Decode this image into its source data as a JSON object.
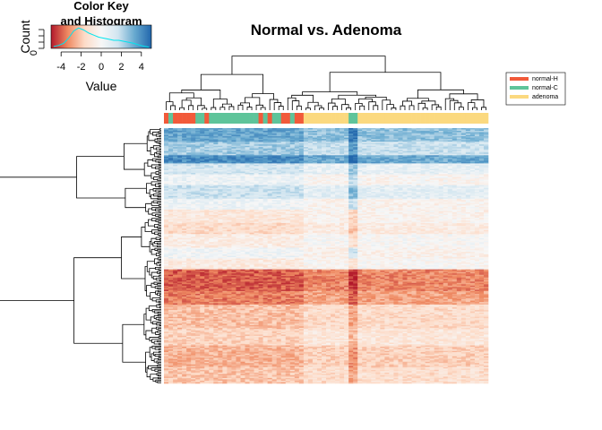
{
  "chart_data": {
    "type": "heatmap",
    "title": "Normal vs. Adenoma",
    "color_key": {
      "title_line1": "Color Key",
      "title_line2": "and Histogram",
      "xlabel": "Value",
      "ylabel": "Count",
      "x_ticks": [
        "-4",
        "-2",
        "0",
        "2",
        "4"
      ],
      "x_tick_values": [
        -4,
        -2,
        0,
        2,
        4
      ],
      "range": [
        -5,
        5
      ],
      "y_tick_zero": "0",
      "colors": [
        "#b2182b",
        "#ef8a62",
        "#fddbc7",
        "#f7f7f7",
        "#d1e5f0",
        "#67a9cf",
        "#2166ac"
      ],
      "histogram_color": "#00e5ee",
      "histogram_counts": [
        0.05,
        0.1,
        0.2,
        0.45,
        0.8,
        0.95,
        0.85,
        0.7,
        0.6,
        0.5,
        0.45,
        0.4,
        0.35,
        0.35,
        0.3,
        0.25,
        0.2,
        0.12,
        0.06,
        0.02
      ]
    },
    "legend": {
      "placement": "top-right",
      "entries": [
        {
          "label": "normal-H",
          "color": "#f15a3a"
        },
        {
          "label": "normal-C",
          "color": "#5ec49a"
        },
        {
          "label": "adenoma",
          "color": "#fbd97f"
        }
      ]
    },
    "column_annotation": [
      "normal-H",
      "normal-C",
      "normal-H",
      "normal-H",
      "normal-H",
      "normal-H",
      "normal-H",
      "normal-C",
      "normal-C",
      "normal-H",
      "normal-C",
      "normal-C",
      "normal-C",
      "normal-C",
      "normal-C",
      "normal-C",
      "normal-C",
      "normal-C",
      "normal-C",
      "normal-C",
      "normal-C",
      "normal-H",
      "normal-C",
      "normal-H",
      "normal-C",
      "normal-C",
      "normal-H",
      "normal-H",
      "normal-C",
      "normal-H",
      "normal-H",
      "adenoma",
      "adenoma",
      "adenoma",
      "adenoma",
      "adenoma",
      "adenoma",
      "adenoma",
      "adenoma",
      "adenoma",
      "adenoma",
      "normal-C",
      "normal-C",
      "adenoma",
      "adenoma",
      "adenoma",
      "adenoma",
      "adenoma",
      "adenoma",
      "adenoma",
      "adenoma",
      "adenoma",
      "adenoma",
      "adenoma",
      "adenoma",
      "adenoma",
      "adenoma",
      "adenoma",
      "adenoma",
      "adenoma",
      "adenoma",
      "adenoma",
      "adenoma",
      "adenoma",
      "adenoma",
      "adenoma",
      "adenoma",
      "adenoma",
      "adenoma",
      "adenoma",
      "adenoma",
      "adenoma"
    ],
    "row_blocks": [
      {
        "rows": 10,
        "value": 3.2
      },
      {
        "rows": 10,
        "value": 2.2
      },
      {
        "rows": 6,
        "value": 3.8
      },
      {
        "rows": 8,
        "value": 1.2
      },
      {
        "rows": 8,
        "value": 0.3
      },
      {
        "rows": 10,
        "value": 1.4
      },
      {
        "rows": 8,
        "value": 0.2
      },
      {
        "rows": 10,
        "value": -0.8
      },
      {
        "rows": 8,
        "value": -1.3
      },
      {
        "rows": 10,
        "value": -0.5
      },
      {
        "rows": 8,
        "value": 0.1
      },
      {
        "rows": 8,
        "value": -0.6
      },
      {
        "rows": 16,
        "value": -3.8
      },
      {
        "rows": 10,
        "value": -3.3
      },
      {
        "rows": 18,
        "value": -2.0
      },
      {
        "rows": 12,
        "value": -1.5
      },
      {
        "rows": 16,
        "value": -2.3
      },
      {
        "rows": 12,
        "value": -1.9
      }
    ],
    "column_effects": [
      {
        "group": "normal",
        "shift": -0.2
      },
      {
        "group": "adenoma",
        "shift": 0.5
      },
      {
        "group": "bright_columns",
        "columns": [
          41,
          42
        ],
        "shift": 1.2
      }
    ]
  }
}
